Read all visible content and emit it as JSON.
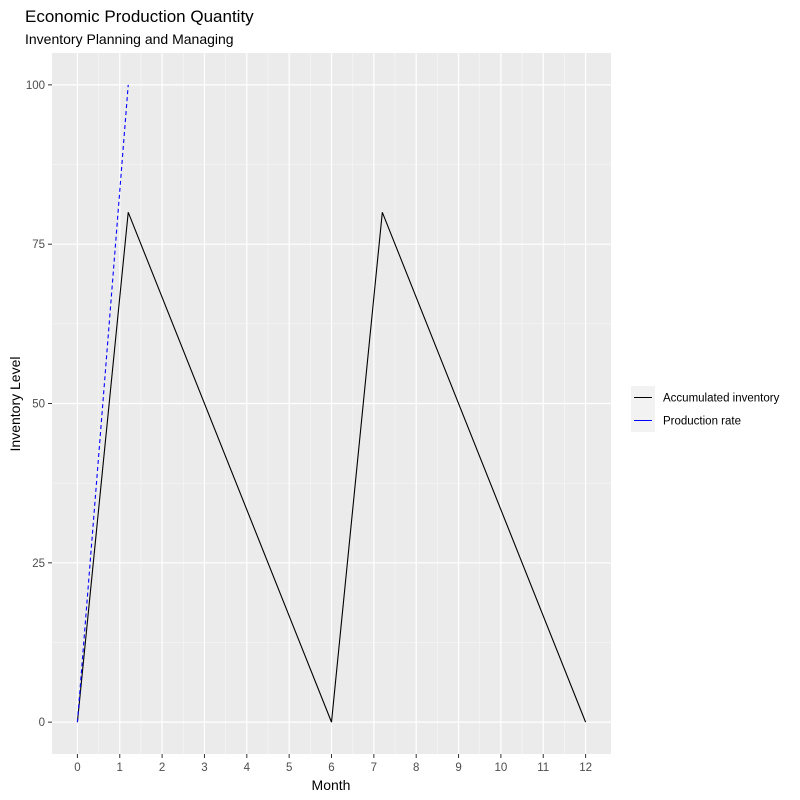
{
  "chart_data": {
    "type": "line",
    "title": "Economic Production Quantity",
    "subtitle": "Inventory Planning and Managing",
    "xlabel": "Month",
    "ylabel": "Inventory Level",
    "xlim": [
      -0.6,
      12.6
    ],
    "ylim": [
      -5,
      105
    ],
    "x_ticks": [
      0,
      1,
      2,
      3,
      4,
      5,
      6,
      7,
      8,
      9,
      10,
      11,
      12
    ],
    "y_ticks": [
      0,
      25,
      50,
      75,
      100
    ],
    "grid": true,
    "legend_position": "right",
    "series": [
      {
        "name": "Accumulated inventory",
        "color": "#000000",
        "dash": "solid",
        "points": [
          [
            0,
            0
          ],
          [
            1.2,
            80
          ],
          [
            6,
            0
          ],
          [
            7.2,
            80
          ],
          [
            12,
            0
          ]
        ]
      },
      {
        "name": "Production rate",
        "color": "#0000ff",
        "dash": "dashed",
        "points": [
          [
            0,
            0
          ],
          [
            1.2,
            100
          ]
        ]
      }
    ]
  }
}
